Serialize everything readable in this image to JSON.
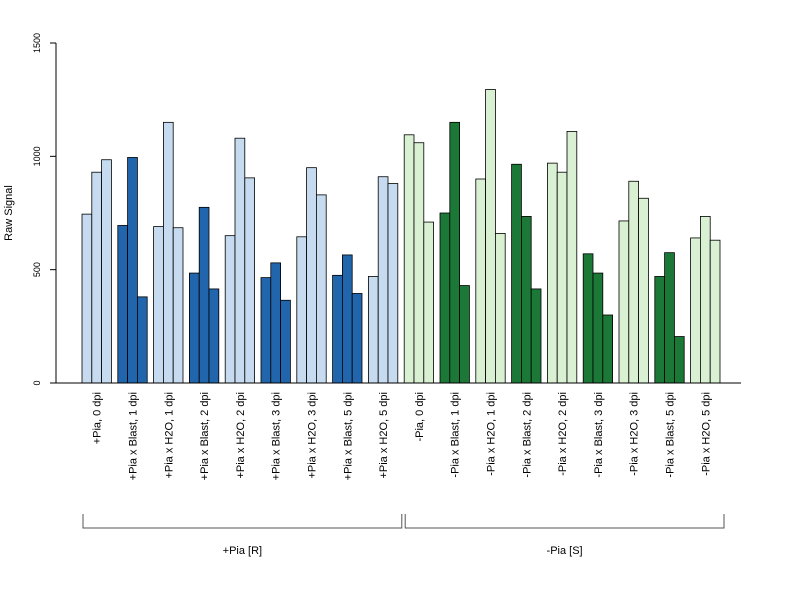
{
  "chart_data": {
    "type": "bar",
    "ylabel": "Raw Signal",
    "xlabel": "",
    "ylim": [
      0,
      1500
    ],
    "yticks": [
      0,
      500,
      1000,
      1500
    ],
    "grid": false,
    "categories": [
      "+Pia, 0 dpi",
      "+Pia x Blast, 1 dpi",
      "+Pia x H2O, 1 dpi",
      "+Pia x Blast, 2 dpi",
      "+Pia x H2O, 2 dpi",
      "+Pia x Blast, 3 dpi",
      "+Pia x H2O, 3 dpi",
      "+Pia x Blast, 5 dpi",
      "+Pia x H2O, 5 dpi",
      "-Pia, 0 dpi",
      "-Pia x Blast, 1 dpi",
      "-Pia x H2O, 1 dpi",
      "-Pia x Blast, 2 dpi",
      "-Pia x H2O, 2 dpi",
      "-Pia x Blast, 3 dpi",
      "-Pia x H2O, 3 dpi",
      "-Pia x Blast, 5 dpi",
      "-Pia x H2O, 5 dpi"
    ],
    "values": [
      [
        745,
        930,
        985
      ],
      [
        695,
        995,
        380
      ],
      [
        690,
        1150,
        685
      ],
      [
        485,
        775,
        415
      ],
      [
        650,
        1080,
        905
      ],
      [
        465,
        530,
        365
      ],
      [
        645,
        950,
        830
      ],
      [
        475,
        565,
        395
      ],
      [
        470,
        910,
        880
      ],
      [
        1095,
        1060,
        710
      ],
      [
        750,
        1150,
        430
      ],
      [
        900,
        1295,
        660
      ],
      [
        965,
        735,
        415
      ],
      [
        970,
        930,
        1110
      ],
      [
        570,
        485,
        300
      ],
      [
        715,
        890,
        815
      ],
      [
        470,
        575,
        205
      ],
      [
        640,
        735,
        630
      ]
    ],
    "bar_colors": [
      "#c6dbef",
      "#2166ac",
      "#c6dbef",
      "#2166ac",
      "#c6dbef",
      "#2166ac",
      "#c6dbef",
      "#2166ac",
      "#c6dbef",
      "#d9f0d3",
      "#1b7837",
      "#d9f0d3",
      "#1b7837",
      "#d9f0d3",
      "#1b7837",
      "#d9f0d3",
      "#1b7837",
      "#d9f0d3"
    ],
    "groups": [
      {
        "label": "+Pia [R]",
        "start": 0,
        "end": 8
      },
      {
        "label": "-Pia [S]",
        "start": 9,
        "end": 17
      }
    ]
  }
}
